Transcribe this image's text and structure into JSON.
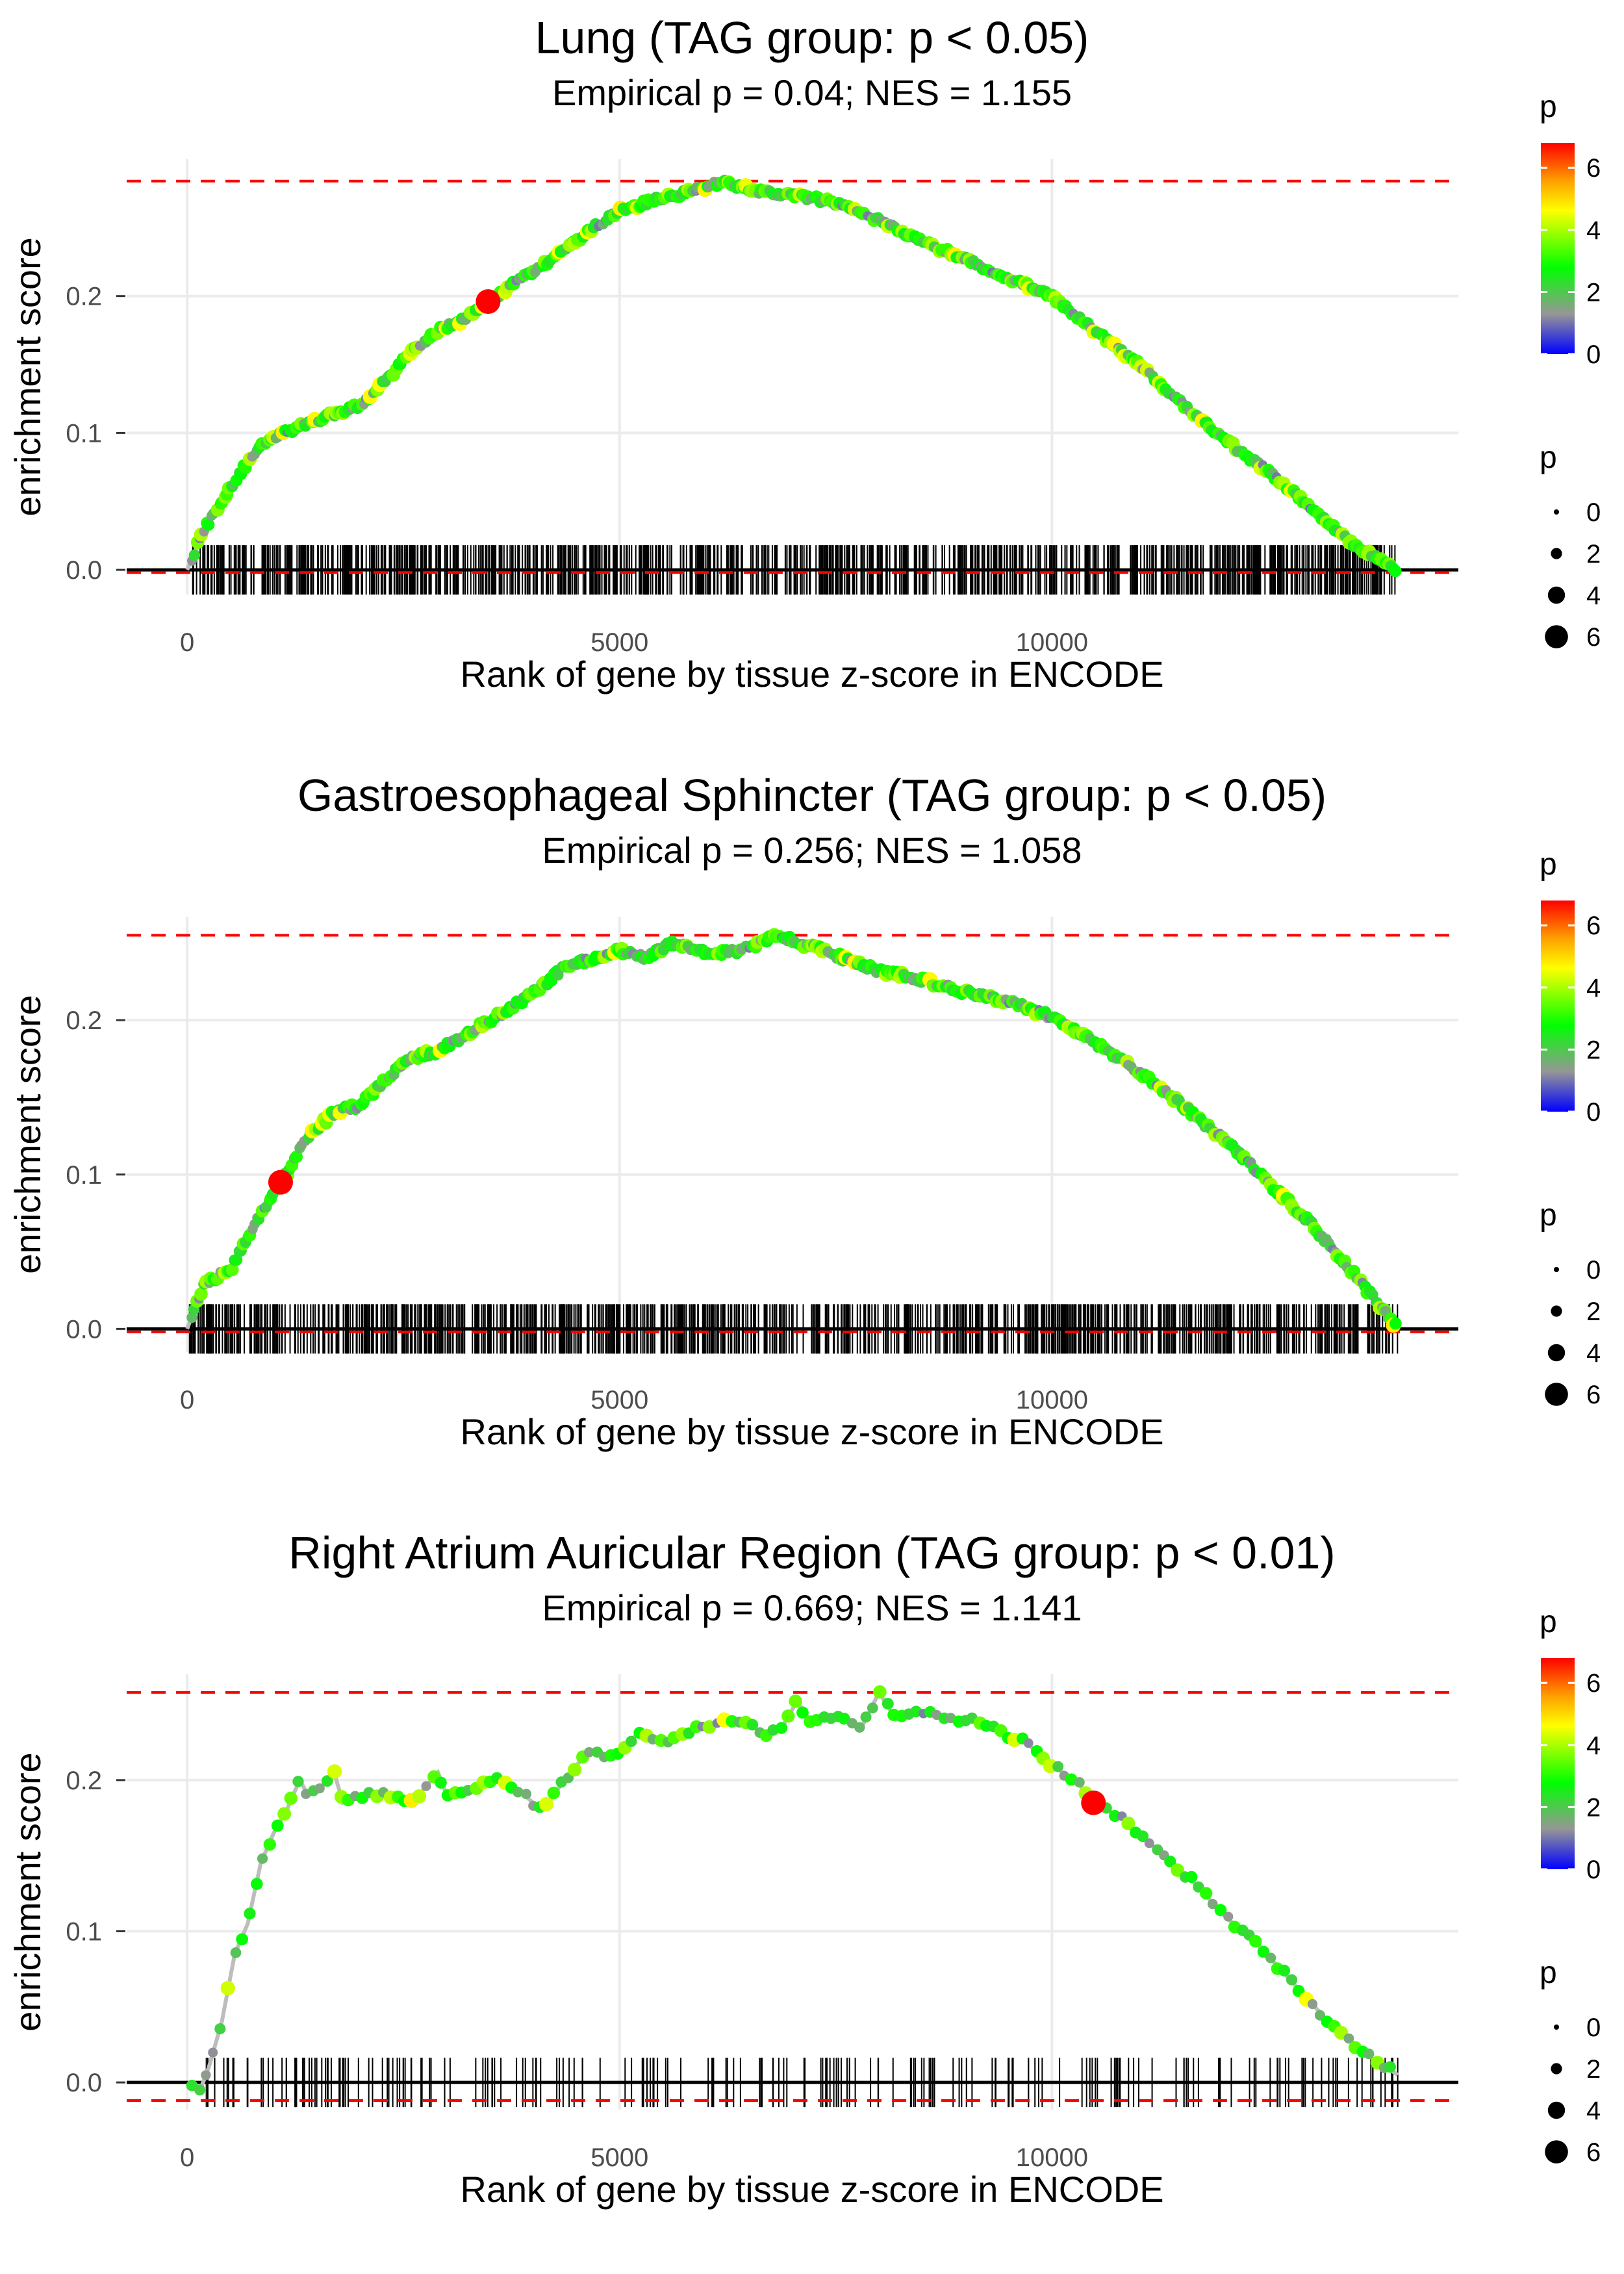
{
  "chart_data": [
    {
      "type": "line",
      "title": "Lung (TAG group: p < 0.05)",
      "subtitle": "Empirical p = 0.04; NES = 1.155",
      "xlabel": "Rank of gene by tissue z-score in ENCODE",
      "ylabel": "enrichment score",
      "xlim": [
        -700,
        14700
      ],
      "ylim": [
        -0.018,
        0.3
      ],
      "xticks": [
        0,
        5000,
        10000
      ],
      "xtick_labels": [
        "0",
        "5000",
        "10000"
      ],
      "yticks": [
        0.0,
        0.1,
        0.2
      ],
      "ytick_labels": [
        "0.0",
        "0.1",
        "0.2"
      ],
      "max_es": 0.284,
      "min_es": -0.002,
      "curve_x": [
        0,
        200,
        500,
        800,
        1100,
        1400,
        1700,
        2000,
        2300,
        2600,
        2900,
        3200,
        3500,
        3800,
        4100,
        4400,
        4700,
        5000,
        5400,
        5800,
        6200,
        6600,
        7000,
        7500,
        8000,
        8500,
        9000,
        9500,
        10000,
        10500,
        11000,
        11500,
        12000,
        12500,
        13000,
        13500,
        14000
      ],
      "curve_y": [
        0.0,
        0.03,
        0.06,
        0.088,
        0.1,
        0.107,
        0.114,
        0.12,
        0.138,
        0.16,
        0.175,
        0.183,
        0.196,
        0.21,
        0.222,
        0.236,
        0.25,
        0.262,
        0.27,
        0.276,
        0.284,
        0.276,
        0.274,
        0.268,
        0.255,
        0.24,
        0.227,
        0.213,
        0.2,
        0.175,
        0.15,
        0.122,
        0.095,
        0.072,
        0.045,
        0.018,
        0.0
      ],
      "highlight_points": [
        {
          "x": 3480,
          "y": 0.196,
          "p": 6.8
        }
      ],
      "hit_density": "dense",
      "colorbar_title": "p",
      "colorbar_ticks": [
        "0",
        "2",
        "4",
        "6"
      ],
      "size_legend_title": "p",
      "size_legend_labels": [
        "0",
        "2",
        "4",
        "6"
      ]
    },
    {
      "type": "line",
      "title": "Gastroesophageal Sphincter (TAG group: p < 0.05)",
      "subtitle": "Empirical p = 0.256; NES = 1.058",
      "xlabel": "Rank of gene by tissue z-score in ENCODE",
      "ylabel": "enrichment score",
      "xlim": [
        -700,
        14700
      ],
      "ylim": [
        -0.015,
        0.267
      ],
      "xticks": [
        0,
        5000,
        10000
      ],
      "xtick_labels": [
        "0",
        "5000",
        "10000"
      ],
      "yticks": [
        0.0,
        0.1,
        0.2
      ],
      "ytick_labels": [
        "0.0",
        "0.1",
        "0.2"
      ],
      "max_es": 0.255,
      "min_es": -0.002,
      "curve_x": [
        0,
        200,
        500,
        800,
        1100,
        1400,
        1700,
        2000,
        2300,
        2600,
        2900,
        3200,
        3500,
        3800,
        4100,
        4400,
        4700,
        5000,
        5300,
        5600,
        6000,
        6400,
        6800,
        7200,
        7600,
        8000,
        8500,
        9000,
        9500,
        10000,
        10500,
        11000,
        11500,
        12000,
        12500,
        13000,
        13500,
        14000
      ],
      "curve_y": [
        0.0,
        0.03,
        0.038,
        0.07,
        0.095,
        0.125,
        0.14,
        0.145,
        0.162,
        0.176,
        0.18,
        0.19,
        0.2,
        0.21,
        0.222,
        0.236,
        0.24,
        0.245,
        0.24,
        0.25,
        0.243,
        0.245,
        0.255,
        0.248,
        0.24,
        0.232,
        0.226,
        0.218,
        0.212,
        0.202,
        0.185,
        0.167,
        0.145,
        0.122,
        0.095,
        0.068,
        0.035,
        0.0
      ],
      "highlight_points": [
        {
          "x": 1080,
          "y": 0.095,
          "p": 6.8
        }
      ],
      "hit_density": "dense",
      "colorbar_title": "p",
      "colorbar_ticks": [
        "0",
        "2",
        "4",
        "6"
      ],
      "size_legend_title": "p",
      "size_legend_labels": [
        "0",
        "2",
        "4",
        "6"
      ]
    },
    {
      "type": "line",
      "title": "Right Atrium Auricular Region (TAG group: p < 0.01)",
      "subtitle": "Empirical p = 0.669; NES = 1.141",
      "xlabel": "Rank of gene by tissue z-score in ENCODE",
      "ylabel": "enrichment score",
      "xlim": [
        -700,
        14700
      ],
      "ylim": [
        -0.018,
        0.27
      ],
      "xticks": [
        0,
        5000,
        10000
      ],
      "xtick_labels": [
        "0",
        "5000",
        "10000"
      ],
      "yticks": [
        0.0,
        0.1,
        0.2
      ],
      "ytick_labels": [
        "0.0",
        "0.1",
        "0.2"
      ],
      "max_es": 0.258,
      "min_es": -0.012,
      "curve_x": [
        0,
        150,
        250,
        400,
        550,
        700,
        850,
        1000,
        1150,
        1300,
        1400,
        1550,
        1700,
        1800,
        2000,
        2300,
        2600,
        2900,
        3000,
        3300,
        3600,
        3900,
        4100,
        4300,
        4500,
        4700,
        4900,
        5200,
        5500,
        5800,
        6100,
        6400,
        6700,
        6900,
        7050,
        7200,
        7500,
        7800,
        8000,
        8200,
        8500,
        8800,
        9100,
        9400,
        9700,
        10000,
        10300,
        10500,
        10800,
        11200,
        11600,
        12000,
        12400,
        12800,
        13200,
        13600,
        14000
      ],
      "curve_y": [
        0.0,
        -0.005,
        0.01,
        0.04,
        0.085,
        0.105,
        0.145,
        0.165,
        0.18,
        0.2,
        0.19,
        0.195,
        0.205,
        0.185,
        0.19,
        0.19,
        0.185,
        0.205,
        0.19,
        0.195,
        0.2,
        0.19,
        0.18,
        0.195,
        0.21,
        0.22,
        0.215,
        0.23,
        0.225,
        0.232,
        0.237,
        0.24,
        0.23,
        0.237,
        0.252,
        0.24,
        0.242,
        0.235,
        0.258,
        0.24,
        0.245,
        0.24,
        0.24,
        0.232,
        0.225,
        0.21,
        0.198,
        0.185,
        0.175,
        0.155,
        0.135,
        0.11,
        0.09,
        0.065,
        0.04,
        0.02,
        0.005
      ],
      "highlight_points": [
        {
          "x": 10480,
          "y": 0.185,
          "p": 6.8
        }
      ],
      "hit_density": "sparse",
      "colorbar_title": "p",
      "colorbar_ticks": [
        "0",
        "2",
        "4",
        "6"
      ],
      "size_legend_title": "p",
      "size_legend_labels": [
        "0",
        "2",
        "4",
        "6"
      ]
    }
  ]
}
